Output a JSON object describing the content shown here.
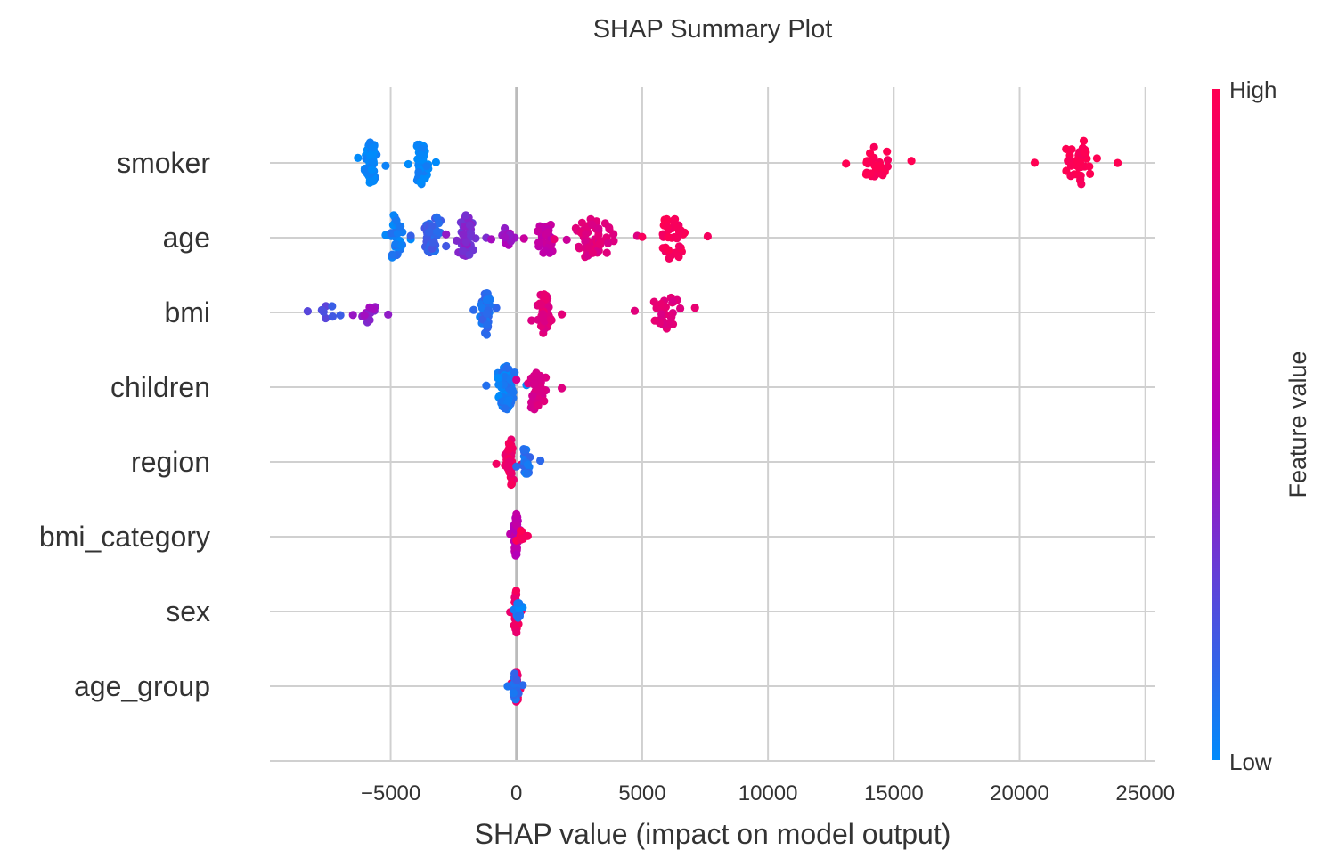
{
  "chart_data": {
    "type": "scatter",
    "subtype": "beeswarm",
    "title": "SHAP Summary Plot",
    "xlabel": "SHAP value (impact on model output)",
    "ylabel": "",
    "xlim": [
      -9800,
      25400
    ],
    "xticks": [
      -5000,
      0,
      5000,
      10000,
      15000,
      20000,
      25000
    ],
    "xtick_labels": [
      "−5000",
      "0",
      "5000",
      "10000",
      "15000",
      "20000",
      "25000"
    ],
    "grid": true,
    "features": [
      "smoker",
      "age",
      "bmi",
      "children",
      "region",
      "bmi_category",
      "sex",
      "age_group"
    ],
    "colorbar": {
      "title": "Feature value",
      "high_label": "High",
      "low_label": "Low",
      "high_color": "#ff0052",
      "mid_color": "#b400b9",
      "low_color": "#008bfb"
    },
    "series": [
      {
        "feature": "smoker",
        "groups": [
          {
            "x_min": -6300,
            "x_max": -5200,
            "center": -5800,
            "count": 70,
            "color": 0.0
          },
          {
            "x_min": -4300,
            "x_max": -3200,
            "center": -3800,
            "count": 55,
            "color": 0.0
          },
          {
            "x_min": 13100,
            "x_max": 15700,
            "center": 14300,
            "count": 30,
            "color": 1.0
          },
          {
            "x_min": 20600,
            "x_max": 23900,
            "center": 22500,
            "count": 40,
            "color": 1.0
          }
        ]
      },
      {
        "feature": "age",
        "groups": [
          {
            "x_min": -5200,
            "x_max": -4200,
            "center": -4900,
            "count": 40,
            "color": 0.05
          },
          {
            "x_min": -4200,
            "x_max": -2800,
            "center": -3200,
            "count": 60,
            "color": 0.15
          },
          {
            "x_min": -2800,
            "x_max": -1200,
            "center": -2000,
            "count": 45,
            "color": 0.35
          },
          {
            "x_min": -1000,
            "x_max": 300,
            "center": -400,
            "count": 14,
            "color": 0.45
          },
          {
            "x_min": 300,
            "x_max": 2000,
            "center": 1200,
            "count": 30,
            "color": 0.6
          },
          {
            "x_min": 1500,
            "x_max": 4800,
            "center": 3000,
            "count": 55,
            "color": 0.78
          },
          {
            "x_min": 5000,
            "x_max": 7600,
            "center": 6200,
            "count": 40,
            "color": 0.95
          }
        ]
      },
      {
        "feature": "bmi",
        "groups": [
          {
            "x_min": -8300,
            "x_max": -7000,
            "center": -7400,
            "count": 8,
            "color": 0.2
          },
          {
            "x_min": -6500,
            "x_max": -5100,
            "center": -5800,
            "count": 16,
            "color": 0.4
          },
          {
            "x_min": -1700,
            "x_max": -800,
            "center": -1200,
            "count": 50,
            "color": 0.1
          },
          {
            "x_min": 600,
            "x_max": 1800,
            "center": 1000,
            "count": 55,
            "color": 0.8
          },
          {
            "x_min": 4700,
            "x_max": 7100,
            "center": 6000,
            "count": 30,
            "color": 0.8
          }
        ]
      },
      {
        "feature": "children",
        "groups": [
          {
            "x_min": -1200,
            "x_max": 400,
            "center": -400,
            "count": 70,
            "color": 0.05
          },
          {
            "x_min": 0,
            "x_max": 1800,
            "center": 700,
            "count": 40,
            "color": 0.75
          }
        ]
      },
      {
        "feature": "region",
        "groups": [
          {
            "x_min": -800,
            "x_max": 200,
            "center": -200,
            "count": 40,
            "color": 0.9
          },
          {
            "x_min": 0,
            "x_max": 950,
            "center": 300,
            "count": 25,
            "color": 0.1
          }
        ]
      },
      {
        "feature": "bmi_category",
        "groups": [
          {
            "x_min": -250,
            "x_max": 150,
            "center": 0,
            "count": 40,
            "color": 0.55
          },
          {
            "x_min": 0,
            "x_max": 450,
            "center": 200,
            "count": 8,
            "color": 0.95
          }
        ]
      },
      {
        "feature": "sex",
        "groups": [
          {
            "x_min": -250,
            "x_max": 200,
            "center": 0,
            "count": 40,
            "color": 0.9
          },
          {
            "x_min": -100,
            "x_max": 250,
            "center": 100,
            "count": 15,
            "color": 0.05
          }
        ]
      },
      {
        "feature": "age_group",
        "groups": [
          {
            "x_min": -200,
            "x_max": 150,
            "center": 0,
            "count": 30,
            "color": 0.9
          },
          {
            "x_min": -350,
            "x_max": 250,
            "center": 0,
            "count": 25,
            "color": 0.1
          }
        ]
      }
    ]
  }
}
